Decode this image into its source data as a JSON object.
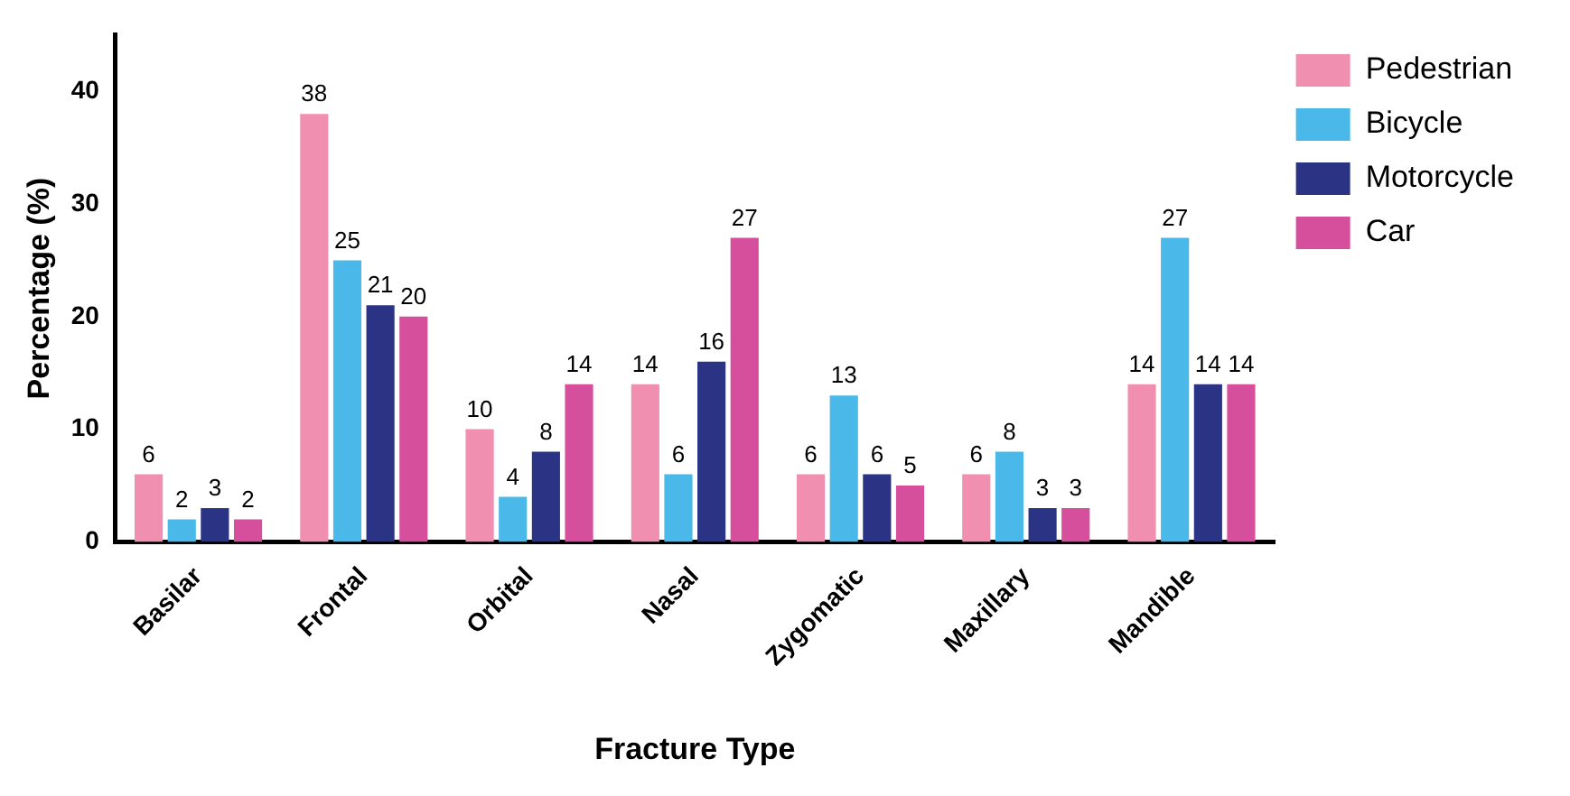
{
  "chart_data": {
    "type": "bar",
    "xlabel": "Fracture Type",
    "ylabel": "Percentage (%)",
    "categories": [
      "Basilar",
      "Frontal",
      "Orbital",
      "Nasal",
      "Zygomatic",
      "Maxillary",
      "Mandible"
    ],
    "series": [
      {
        "name": "Pedestrian",
        "color": "#f08fb0",
        "values": [
          6,
          38,
          10,
          14,
          6,
          6,
          14
        ]
      },
      {
        "name": "Bicycle",
        "color": "#4ab8e8",
        "values": [
          2,
          25,
          4,
          6,
          13,
          8,
          27
        ]
      },
      {
        "name": "Motorcycle",
        "color": "#2b3484",
        "values": [
          3,
          21,
          8,
          16,
          6,
          3,
          14
        ]
      },
      {
        "name": "Car",
        "color": "#d64f9c",
        "values": [
          2,
          20,
          14,
          27,
          5,
          3,
          14
        ]
      }
    ],
    "ylim": [
      0,
      45
    ],
    "yticks": [
      0,
      10,
      20,
      30,
      40
    ],
    "grid": false,
    "legend": "right",
    "data_labels": true
  }
}
